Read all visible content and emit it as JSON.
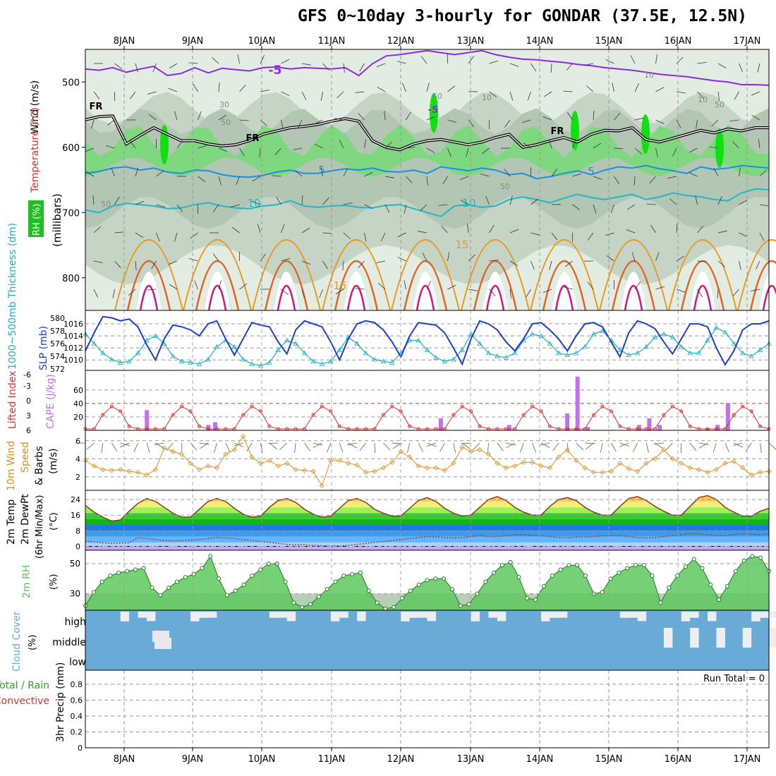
{
  "title": "GFS 0~10day 3-hourly for GONDAR (37.5E, 12.5N)",
  "colors": {
    "frame": "#000000",
    "grid": "#9a9a9a",
    "rh_light": "#e2ece2",
    "rh_mid": "#c5d4c5",
    "rh_dark": "#b3c6b3",
    "rh_green": "#7fd87f",
    "rh_bright": "#10e010",
    "temp_purple": "#8a2be2",
    "temp_blue": "#1b8fe0",
    "temp_cyan": "#20b8c8",
    "temp_orange": "#e89a20",
    "temp_dkorange": "#e0641e",
    "temp_magenta": "#d4147e",
    "slp_blue": "#1e3fc8",
    "thick_cyan": "#20b0c0",
    "li_red": "#e03030",
    "cape_purple": "#c070f0",
    "wind_orange": "#e09020",
    "barb_brown": "#7a5a3a",
    "cloud_blue": "#6aaad6",
    "rh2m_green": "#5ec85e"
  },
  "chart_data": [
    {
      "panel": "upper-air",
      "type": "area",
      "y_axis_label": "(millibars)",
      "left_labels": [
        "RH (%)",
        "Temperature (°C)",
        "Wind (m/s)"
      ],
      "y_ticks": [
        500,
        600,
        700,
        800
      ],
      "ylim": [
        450,
        850
      ],
      "x_labels": [
        "8JAN",
        "9JAN",
        "10JAN",
        "11JAN",
        "12JAN",
        "13JAN",
        "14JAN",
        "15JAN",
        "16JAN",
        "17JAN"
      ],
      "contour_labels": [
        "-5",
        "FR",
        "FR",
        "FR",
        "-5",
        "5",
        "5",
        "10",
        "10",
        "15",
        "15",
        "10",
        "10",
        "10",
        "30",
        "50",
        "50",
        "50",
        "50",
        "50"
      ],
      "isotherms": [
        {
          "label": "-5",
          "p": [
            480,
            482,
            478,
            485,
            480,
            476,
            490,
            487,
            478,
            486,
            479,
            481,
            483,
            478,
            477,
            480,
            478,
            479,
            480,
            478,
            490,
            472,
            460,
            458,
            455,
            452,
            455,
            458,
            455,
            452,
            458,
            462,
            465,
            466,
            468,
            470,
            473,
            475,
            478,
            480,
            482,
            485,
            488,
            490,
            492,
            495,
            498,
            500,
            504,
            504,
            505
          ]
        },
        {
          "label": "5",
          "p": [
            640,
            637,
            632,
            630,
            635,
            632,
            638,
            640,
            635,
            636,
            642,
            645,
            646,
            643,
            638,
            635,
            640,
            640,
            636,
            633,
            635,
            632,
            637,
            638,
            635,
            640,
            630,
            633,
            636,
            632,
            635,
            642,
            640,
            648,
            645,
            640,
            636,
            642,
            635,
            630,
            632,
            628,
            633,
            636,
            640,
            630,
            634,
            632,
            628,
            630,
            632
          ]
        },
        {
          "label": "10",
          "p": [
            696,
            700,
            690,
            686,
            688,
            690,
            694,
            693,
            688,
            685,
            690,
            693,
            694,
            690,
            688,
            682,
            690,
            692,
            690,
            689,
            692,
            693,
            689,
            688,
            694,
            700,
            706,
            690,
            688,
            692,
            690,
            680,
            676,
            680,
            685,
            678,
            672,
            677,
            680,
            676,
            672,
            680,
            676,
            670,
            674,
            676,
            680,
            682,
            670,
            664,
            665
          ]
        }
      ],
      "freezing_level": [
        558,
        553,
        552,
        595,
        582,
        570,
        580,
        590,
        590,
        595,
        598,
        596,
        590,
        580,
        575,
        570,
        568,
        565,
        560,
        556,
        560,
        590,
        600,
        604,
        595,
        590,
        588,
        592,
        596,
        592,
        585,
        580,
        600,
        596,
        590,
        585,
        592,
        580,
        574,
        575,
        570,
        588,
        592,
        586,
        580,
        574,
        578,
        572,
        575,
        570,
        570
      ]
    },
    {
      "panel": "thickness-slp",
      "type": "line",
      "y_left_label": "1000~500mb Thickness (dm)",
      "y_right_label": "SLP (mb)",
      "y_left_ticks": [
        572,
        574,
        576,
        578,
        580
      ],
      "y_right_ticks": [
        1010,
        1012,
        1014,
        1016
      ],
      "series": [
        {
          "name": "SLP (mb)",
          "values": [
            1011.5,
            1014.5,
            1017.2,
            1017.0,
            1016.5,
            1016.8,
            1015.5,
            1012.5,
            1010.0,
            1013.5,
            1015.8,
            1015.5,
            1015.0,
            1014.0,
            1016.0,
            1016.5,
            1013.5,
            1010.8,
            1013.5,
            1016.2,
            1015.8,
            1015.5,
            1013.0,
            1011.0,
            1015.0,
            1016.5,
            1016.0,
            1015.5,
            1013.0,
            1010.0,
            1013.5,
            1016.0,
            1016.5,
            1016.2,
            1015.0,
            1013.0,
            1010.5,
            1014.0,
            1016.2,
            1016.0,
            1015.8,
            1014.5,
            1012.0,
            1009.3,
            1013.5,
            1016.5,
            1016.0,
            1015.0,
            1013.0,
            1011.5,
            1013.5,
            1016.0,
            1016.2,
            1015.0,
            1013.5,
            1011.5,
            1014.0,
            1016.0,
            1016.2,
            1015.5,
            1013.0,
            1010.5,
            1014.5,
            1016.5,
            1016.0,
            1015.2,
            1013.0,
            1011.0,
            1013.5,
            1016.0,
            1016.0,
            1015.5,
            1012.0,
            1009.2,
            1011.5,
            1015.0,
            1016.0,
            1016.0,
            1016.5
          ]
        },
        {
          "name": "Thickness (dm)",
          "values": [
            577.5,
            576.0,
            574.5,
            573.5,
            573.0,
            573.2,
            574.5,
            576.5,
            577.2,
            576.0,
            574.0,
            573.2,
            573.0,
            572.8,
            573.5,
            575.5,
            576.5,
            575.5,
            573.5,
            572.8,
            572.5,
            573.0,
            575.0,
            576.5,
            576.0,
            574.5,
            573.2,
            572.8,
            573.2,
            575.0,
            577.0,
            576.0,
            574.5,
            573.5,
            573.2,
            573.0,
            574.5,
            576.5,
            576.5,
            575.0,
            573.8,
            573.2,
            573.5,
            575.0,
            577.5,
            576.0,
            574.5,
            574.0,
            573.8,
            574.5,
            576.5,
            577.5,
            577.2,
            576.0,
            574.5,
            574.2,
            574.5,
            575.5,
            577.5,
            578.0,
            576.5,
            575.0,
            574.2,
            574.5,
            575.5,
            577.0,
            577.5,
            577.0,
            575.5,
            574.5,
            574.5,
            576.5,
            578.5,
            577.8,
            576.0,
            574.5,
            574.0,
            575.0,
            576.0
          ]
        }
      ]
    },
    {
      "panel": "stability",
      "type": "bar",
      "y_left_label": "Lifted Index",
      "y_right_label": "CAPE (J/kg)",
      "y_left_ticks": [
        "6",
        "3",
        "0",
        "-3",
        "-6"
      ],
      "y_right_ticks": [
        20,
        40,
        60
      ],
      "cape_bars": [
        {
          "x": 0.09,
          "v": 30
        },
        {
          "x": 0.18,
          "v": 8
        },
        {
          "x": 0.19,
          "v": 12
        },
        {
          "x": 0.52,
          "v": 18
        },
        {
          "x": 0.62,
          "v": 8
        },
        {
          "x": 0.705,
          "v": 25
        },
        {
          "x": 0.72,
          "v": 80
        },
        {
          "x": 0.735,
          "v": 5
        },
        {
          "x": 0.81,
          "v": 8
        },
        {
          "x": 0.825,
          "v": 18
        },
        {
          "x": 0.84,
          "v": 8
        },
        {
          "x": 0.91,
          "v": 3
        },
        {
          "x": 0.925,
          "v": 8
        },
        {
          "x": 0.94,
          "v": 40
        }
      ]
    },
    {
      "panel": "10m-wind",
      "type": "line",
      "y_label": "10m Wind Speed & Barbs (m/s)",
      "y_ticks": [
        2,
        4,
        6
      ],
      "series": [
        {
          "name": "Speed",
          "values": [
            3.8,
            3.2,
            2.8,
            2.7,
            2.8,
            2.6,
            2.5,
            2.2,
            2.8,
            5.2,
            4.8,
            4.5,
            3.5,
            2.8,
            3.2,
            3.0,
            4.5,
            5.0,
            6.5,
            4.2,
            3.5,
            3.8,
            3.2,
            3.5,
            2.8,
            2.7,
            2.6,
            1.0,
            3.8,
            3.8,
            3.5,
            3.3,
            2.5,
            2.6,
            3.0,
            3.6,
            4.8,
            4.2,
            3.2,
            3.0,
            3.0,
            2.7,
            3.5,
            5.3,
            4.8,
            5.0,
            4.5,
            3.5,
            3.0,
            3.2,
            3.6,
            3.6,
            3.2,
            3.0,
            4.2,
            5.0,
            3.8,
            3.0,
            2.5,
            2.5,
            2.6,
            3.5,
            2.9,
            2.6,
            3.5,
            4.0,
            5.0,
            4.0,
            3.5,
            3.0,
            2.8,
            2.5,
            2.8,
            3.5,
            3.7,
            3.0,
            2.2,
            2.5,
            2.6
          ]
        }
      ]
    },
    {
      "panel": "2m-temp",
      "type": "area",
      "y_label": "2m Temp 2m DewPt (6hr Min/Max) (°C)",
      "y_ticks": [
        0,
        8,
        16,
        24
      ],
      "series": [
        {
          "name": "2m Temp",
          "values": [
            21,
            17.5,
            15,
            13,
            13.5,
            18,
            22,
            24.5,
            23,
            20,
            17,
            15,
            15,
            19,
            23,
            24.5,
            23,
            19.5,
            16.5,
            15,
            15.5,
            20,
            23.5,
            24.5,
            22.5,
            19,
            16.5,
            15,
            15.5,
            19.5,
            23.5,
            24.5,
            22.5,
            19,
            17,
            15.5,
            15.5,
            19.5,
            23.5,
            25,
            23,
            19.5,
            17,
            15.5,
            16,
            20,
            24,
            25.5,
            23.5,
            20,
            17.5,
            16,
            16,
            20.5,
            24,
            25,
            23.5,
            20,
            17.5,
            16,
            16,
            20.5,
            24.5,
            25.5,
            23.5,
            20.5,
            18,
            16,
            16,
            20.5,
            25,
            26,
            24,
            20,
            17.5,
            15.5,
            15.5,
            18,
            19.5
          ]
        },
        {
          "name": "2m DewPt",
          "values": [
            2.5,
            2.2,
            1.8,
            1.5,
            1.7,
            1.8,
            4.5,
            4,
            3.5,
            3,
            2.8,
            3,
            3.2,
            3.5,
            4,
            4.5,
            4.3,
            4,
            3.5,
            3,
            2.5,
            2,
            1.5,
            1,
            0.8,
            0.8,
            0.5,
            0.3,
            0.2,
            0.2,
            0.5,
            1,
            1.5,
            2,
            2.5,
            3,
            3.5,
            4,
            4.5,
            5,
            4.8,
            4.5,
            4.3,
            4.5,
            5,
            5.5,
            5,
            5,
            5.5,
            6,
            6,
            5.5,
            5.5,
            5,
            4.5,
            4.5,
            4.8,
            4.8,
            5,
            5.3,
            5.5,
            5.5,
            5,
            4.5,
            4.3,
            4.5,
            5,
            5.5,
            6,
            6.5,
            6.5,
            6,
            5.5,
            5.5,
            6,
            6.5,
            6.2,
            6,
            6.5
          ]
        }
      ]
    },
    {
      "panel": "2m-rh",
      "type": "area",
      "y_label": "2m RH (%)",
      "y_ticks": [
        30,
        50
      ],
      "series": [
        {
          "name": "2m RH",
          "values": [
            22,
            31,
            38,
            42,
            44,
            45,
            46,
            47,
            34,
            29,
            34,
            38,
            41,
            43,
            47,
            55,
            40,
            29,
            32,
            36,
            42,
            46,
            50,
            50,
            38,
            24,
            21,
            23,
            28,
            33,
            38,
            42,
            43,
            44,
            32,
            24,
            20,
            21,
            27,
            32,
            36,
            39,
            40,
            40,
            33,
            22,
            23,
            30,
            38,
            44,
            49,
            51,
            41,
            27,
            26,
            35,
            42,
            46,
            49,
            49,
            42,
            30,
            31,
            40,
            44,
            47,
            49,
            49,
            42,
            24,
            34,
            42,
            48,
            53,
            47,
            36,
            26,
            35,
            45,
            52,
            55,
            54,
            45
          ]
        }
      ]
    },
    {
      "panel": "cloud-cover",
      "type": "heatmap",
      "y_label": "Cloud Cover (%)",
      "rows": [
        "high",
        "middle",
        "low"
      ]
    },
    {
      "panel": "precip",
      "type": "bar",
      "y_label": "3hr Precip (mm)",
      "left_labels": [
        "Total / Rain",
        "Convective"
      ],
      "y_ticks": [
        0,
        0.2,
        0.4,
        0.6,
        0.8
      ],
      "annotation": "Run Total = 0",
      "x_labels": [
        "8JAN",
        "9JAN",
        "10JAN",
        "11JAN",
        "12JAN",
        "13JAN",
        "14JAN",
        "15JAN",
        "16JAN",
        "17JAN"
      ]
    }
  ]
}
